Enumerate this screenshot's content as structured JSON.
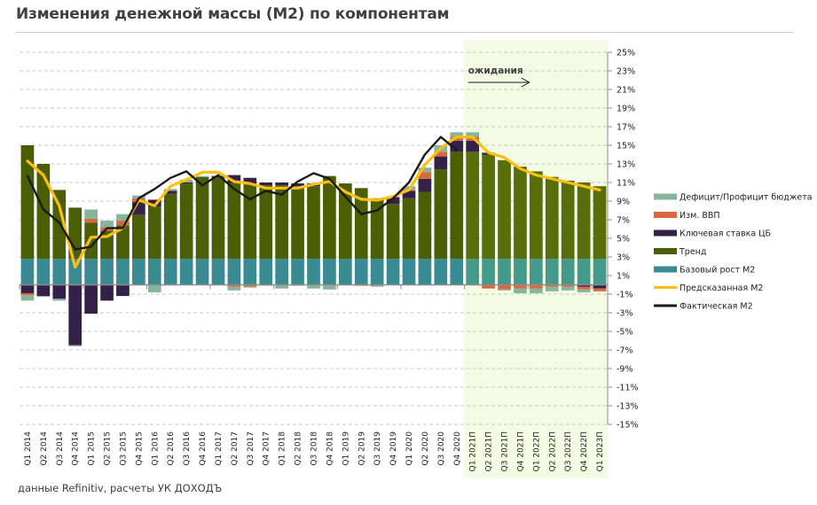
{
  "title": "Изменения денежной массы (М2) по компонентам",
  "footer": "данные Refinitiv, расчеты УК ДОХОДЪ",
  "colors": {
    "budget": "#85b59a",
    "gdp": "#d9693a",
    "keyrate": "#35204a",
    "trend": "#4b5e04",
    "trend_forecast": "#576e0b",
    "base": "#3a8a94",
    "base_forecast": "#449a8a",
    "predicted": "#fdbf0f",
    "actual": "#1a1a1a",
    "forecast_bg": "#f4fbe4",
    "grid": "#c8c8c8"
  },
  "chart_data": {
    "type": "bar",
    "stacked": true,
    "title": "Изменения денежной массы (М2) по компонентам",
    "xlabel": "",
    "ylabel": "",
    "ylim": [
      -15,
      25
    ],
    "yticks": [
      25,
      23,
      21,
      19,
      17,
      15,
      13,
      11,
      9,
      7,
      5,
      3,
      1,
      -1,
      -3,
      -5,
      -7,
      -9,
      -11,
      -13,
      -15
    ],
    "ytick_format": "percent",
    "y_axis_side": "right",
    "grid": true,
    "legend_position": "right",
    "annotation": {
      "text": "ожидания",
      "arrow": "right",
      "start_category": "Q1 2021П"
    },
    "forecast_start_index": 28,
    "categories": [
      "Q1 2014",
      "Q2 2014",
      "Q3 2014",
      "Q4 2014",
      "Q1 2015",
      "Q2 2015",
      "Q3 2015",
      "Q4 2015",
      "Q1 2016",
      "Q2 2016",
      "Q3 2016",
      "Q4 2016",
      "Q1 2017",
      "Q2 2017",
      "Q3 2017",
      "Q4 2017",
      "Q1 2018",
      "Q2 2018",
      "Q3 2018",
      "Q4 2018",
      "Q1 2019",
      "Q2 2019",
      "Q3 2019",
      "Q4 2019",
      "Q1 2020",
      "Q2 2020",
      "Q3 2020",
      "Q4 2020",
      "Q1 2021П",
      "Q2 2021П",
      "Q3 2021П",
      "Q4 2021П",
      "Q1 2022П",
      "Q2 2022П",
      "Q3 2022П",
      "Q4 2022П",
      "Q1 2023П"
    ],
    "series": [
      {
        "name": "Базовый рост М2",
        "key": "base",
        "kind": "bar",
        "values": [
          2.8,
          2.8,
          2.8,
          2.8,
          2.8,
          2.8,
          2.8,
          2.8,
          2.8,
          2.8,
          2.8,
          2.8,
          2.8,
          2.8,
          2.8,
          2.8,
          2.8,
          2.8,
          2.8,
          2.8,
          2.8,
          2.8,
          2.8,
          2.8,
          2.8,
          2.8,
          2.8,
          2.8,
          2.8,
          2.8,
          2.8,
          2.8,
          2.8,
          2.8,
          2.8,
          2.8,
          2.8
        ]
      },
      {
        "name": "Тренд",
        "key": "trend",
        "kind": "bar",
        "values": [
          12.2,
          10.2,
          7.4,
          5.5,
          3.9,
          3.0,
          3.6,
          4.7,
          5.6,
          7.0,
          8.1,
          8.8,
          8.7,
          8.2,
          8.0,
          7.9,
          7.9,
          7.8,
          7.8,
          8.9,
          8.1,
          7.6,
          6.3,
          5.9,
          6.5,
          7.2,
          9.6,
          11.5,
          11.5,
          11.2,
          10.6,
          9.9,
          9.4,
          8.8,
          8.4,
          8.2,
          7.8
        ]
      },
      {
        "name": "Ключевая ставка ЦБ",
        "key": "keyrate",
        "kind": "bar",
        "values": [
          -0.9,
          -1.2,
          -1.5,
          -6.5,
          -3.1,
          -1.7,
          -1.2,
          1.4,
          0.7,
          0.3,
          0.1,
          0.0,
          0.2,
          0.8,
          0.7,
          0.3,
          0.3,
          0.3,
          0.3,
          0.0,
          0.0,
          0.0,
          0.2,
          0.7,
          0.8,
          1.4,
          1.4,
          1.2,
          1.2,
          0.2,
          0.0,
          0.0,
          0.0,
          0.0,
          0.0,
          -0.2,
          -0.4
        ]
      },
      {
        "name": "Изм. ВВП",
        "key": "gdp",
        "kind": "bar",
        "values": [
          -0.2,
          0.0,
          0.0,
          0.0,
          0.4,
          0.4,
          0.5,
          0.4,
          0.1,
          0.0,
          0.0,
          0.0,
          0.0,
          -0.2,
          -0.2,
          0.0,
          0.0,
          0.0,
          0.0,
          0.0,
          0.0,
          -0.1,
          -0.1,
          0.1,
          0.1,
          0.7,
          0.5,
          0.4,
          0.4,
          -0.4,
          -0.5,
          -0.4,
          -0.4,
          -0.2,
          -0.2,
          -0.3,
          -0.3
        ]
      },
      {
        "name": "Дефицит/Профицит бюджета",
        "key": "budget",
        "kind": "bar",
        "values": [
          -0.6,
          -0.1,
          -0.2,
          -0.1,
          1.0,
          0.7,
          0.7,
          0.3,
          -0.8,
          0.2,
          0.3,
          0.1,
          0.0,
          -0.4,
          -0.1,
          -0.1,
          -0.4,
          -0.1,
          -0.4,
          -0.5,
          0.0,
          0.0,
          -0.1,
          0.0,
          0.4,
          0.5,
          0.7,
          0.5,
          0.5,
          0.0,
          -0.1,
          -0.5,
          -0.5,
          -0.5,
          -0.4,
          -0.3,
          0.0
        ]
      },
      {
        "name": "Предсказанная М2",
        "key": "predicted",
        "kind": "line",
        "values": [
          13.3,
          11.8,
          8.5,
          1.9,
          5.1,
          5.2,
          6.1,
          9.1,
          8.5,
          10.6,
          11.3,
          12.1,
          12.1,
          11.1,
          10.9,
          10.4,
          10.4,
          10.4,
          10.8,
          11.1,
          10.0,
          9.2,
          9.1,
          9.5,
          10.2,
          12.9,
          14.7,
          15.9,
          15.9,
          14.2,
          13.7,
          12.5,
          11.8,
          11.4,
          11.0,
          10.6,
          10.2
        ]
      },
      {
        "name": "Фактическая М2",
        "key": "actual",
        "kind": "line",
        "values": [
          11.7,
          8.1,
          6.7,
          3.8,
          4.1,
          6.1,
          6.1,
          9.3,
          10.3,
          11.5,
          12.2,
          10.7,
          11.8,
          10.3,
          9.2,
          10.1,
          9.7,
          11.1,
          12.0,
          11.4,
          9.5,
          7.6,
          8.0,
          9.3,
          11.0,
          14.0,
          15.9,
          14.5,
          null,
          null,
          null,
          null,
          null,
          null,
          null,
          null,
          null
        ]
      }
    ],
    "legend": [
      {
        "label": "Дефицит/Профицит бюджета",
        "key": "budget",
        "kind": "bar"
      },
      {
        "label": "Изм. ВВП",
        "key": "gdp",
        "kind": "bar"
      },
      {
        "label": "Ключевая ставка ЦБ",
        "key": "keyrate",
        "kind": "bar"
      },
      {
        "label": "Тренд",
        "key": "trend",
        "kind": "bar"
      },
      {
        "label": "Базовый рост М2",
        "key": "base",
        "kind": "bar"
      },
      {
        "label": "Предсказанная М2",
        "key": "predicted",
        "kind": "line"
      },
      {
        "label": "Фактическая М2",
        "key": "actual",
        "kind": "line"
      }
    ]
  }
}
